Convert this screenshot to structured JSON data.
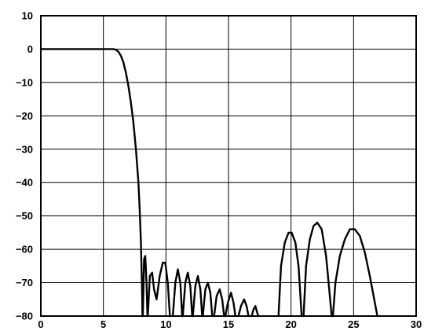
{
  "chart_data": {
    "type": "line",
    "title": "",
    "xlabel": "",
    "ylabel": "",
    "xlim": [
      0,
      30
    ],
    "ylim": [
      -80,
      10
    ],
    "x_ticks": [
      "0",
      "5",
      "10",
      "15",
      "20",
      "25",
      "30"
    ],
    "y_ticks": [
      "10",
      "0",
      "−10",
      "−20",
      "−30",
      "−40",
      "−50",
      "−60",
      "−70",
      "−80"
    ],
    "grid": true,
    "legend": "none",
    "colors": {
      "line": "#000000",
      "grid": "#000000",
      "background": "#ffffff"
    },
    "series": [
      {
        "points": [
          [
            0,
            0
          ],
          [
            1,
            0
          ],
          [
            2,
            0
          ],
          [
            3,
            0
          ],
          [
            4,
            0
          ],
          [
            5,
            0
          ],
          [
            5.5,
            0
          ],
          [
            5.8,
            0
          ],
          [
            6.0,
            -0.2
          ],
          [
            6.2,
            -0.8
          ],
          [
            6.4,
            -2
          ],
          [
            6.6,
            -4
          ],
          [
            6.8,
            -7
          ],
          [
            7.0,
            -11
          ],
          [
            7.2,
            -16
          ],
          [
            7.4,
            -22
          ],
          [
            7.6,
            -30
          ],
          [
            7.8,
            -40
          ],
          [
            7.9,
            -48
          ],
          [
            8.0,
            -58
          ],
          [
            8.05,
            -66
          ],
          [
            8.1,
            -74
          ],
          [
            8.12,
            -80
          ],
          null,
          [
            8.15,
            -80
          ],
          [
            8.25,
            -63
          ],
          [
            8.35,
            -62
          ],
          [
            8.45,
            -70
          ],
          [
            8.52,
            -80
          ],
          null,
          [
            8.55,
            -80
          ],
          [
            8.72,
            -68
          ],
          [
            8.9,
            -67
          ],
          [
            9.05,
            -72
          ],
          [
            9.25,
            -75
          ],
          [
            9.5,
            -68
          ],
          [
            9.75,
            -64
          ],
          [
            9.95,
            -64
          ],
          [
            10.15,
            -70
          ],
          [
            10.32,
            -80
          ],
          null,
          [
            10.55,
            -80
          ],
          [
            10.75,
            -70
          ],
          [
            10.95,
            -66
          ],
          [
            11.15,
            -70
          ],
          [
            11.3,
            -80
          ],
          null,
          [
            11.35,
            -80
          ],
          [
            11.55,
            -70
          ],
          [
            11.75,
            -67
          ],
          [
            11.95,
            -71
          ],
          [
            12.1,
            -80
          ],
          null,
          [
            12.15,
            -80
          ],
          [
            12.35,
            -71
          ],
          [
            12.55,
            -68
          ],
          [
            12.75,
            -72
          ],
          [
            12.9,
            -80
          ],
          null,
          [
            12.95,
            -80
          ],
          [
            13.15,
            -72
          ],
          [
            13.35,
            -70
          ],
          [
            13.55,
            -73
          ],
          [
            13.7,
            -80
          ],
          null,
          [
            13.85,
            -80
          ],
          [
            14.05,
            -74
          ],
          [
            14.3,
            -72
          ],
          [
            14.5,
            -75
          ],
          [
            14.65,
            -80
          ],
          null,
          [
            14.75,
            -80
          ],
          [
            14.95,
            -76
          ],
          [
            15.2,
            -73
          ],
          [
            15.4,
            -76
          ],
          [
            15.55,
            -80
          ],
          null,
          [
            15.8,
            -80
          ],
          [
            16.0,
            -77
          ],
          [
            16.25,
            -75
          ],
          [
            16.45,
            -77
          ],
          [
            16.6,
            -80
          ],
          null,
          [
            16.85,
            -80
          ],
          [
            17.0,
            -78
          ],
          [
            17.15,
            -77
          ],
          [
            17.3,
            -79
          ],
          [
            17.4,
            -80
          ],
          null,
          [
            19.0,
            -80
          ],
          [
            19.2,
            -65
          ],
          [
            19.5,
            -58
          ],
          [
            19.8,
            -55
          ],
          [
            20.05,
            -55
          ],
          [
            20.35,
            -58
          ],
          [
            20.6,
            -65
          ],
          [
            20.85,
            -80
          ],
          null,
          [
            21.0,
            -80
          ],
          [
            21.2,
            -65
          ],
          [
            21.5,
            -57
          ],
          [
            21.8,
            -53
          ],
          [
            22.1,
            -52
          ],
          [
            22.45,
            -54
          ],
          [
            22.8,
            -62
          ],
          [
            23.05,
            -72
          ],
          [
            23.25,
            -80
          ],
          null,
          [
            23.35,
            -80
          ],
          [
            23.55,
            -70
          ],
          [
            23.9,
            -62
          ],
          [
            24.3,
            -57
          ],
          [
            24.7,
            -54
          ],
          [
            25.1,
            -54
          ],
          [
            25.5,
            -56
          ],
          [
            25.9,
            -61
          ],
          [
            26.3,
            -68
          ],
          [
            26.7,
            -76
          ],
          [
            26.9,
            -80
          ]
        ]
      }
    ]
  }
}
